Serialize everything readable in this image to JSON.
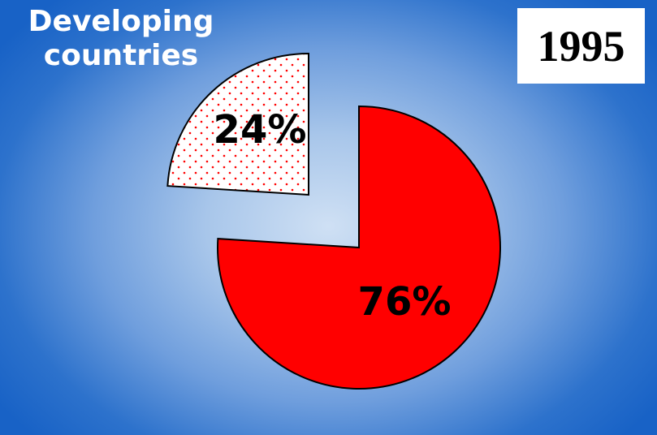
{
  "header": {
    "title_lines": [
      "Developing",
      "countries"
    ],
    "year": "1995"
  },
  "colors": {
    "main_slice": "#ff0000",
    "exploded_slice_fill": "#ffffff",
    "exploded_slice_dots": "#ff0000",
    "outline": "#000000"
  },
  "chart_data": {
    "type": "pie",
    "title": "1995",
    "slices": [
      {
        "label": "76%",
        "value": 76,
        "color": "#ff0000",
        "pattern": "solid"
      },
      {
        "label": "24%",
        "value": 24,
        "color": "#ff0000",
        "pattern": "dotted",
        "exploded": true
      }
    ],
    "start_angle": "12 o'clock",
    "direction": "clockwise",
    "legend": "none"
  }
}
